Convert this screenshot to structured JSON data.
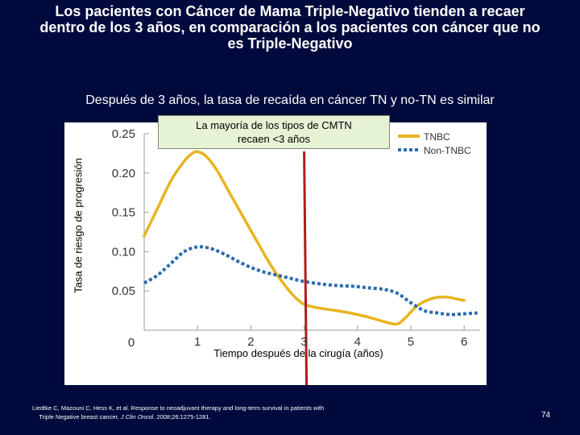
{
  "slide": {
    "title_line1": "Los pacientes con Cáncer de Mama Triple-Negativo tienden a recaer",
    "title_line2": "dentro de los 3 años, en comparación a los pacientes con cáncer que no",
    "title_line3": "es Triple-Negativo",
    "subtitle": "Después de 3 años, la tasa de recaída en cáncer TN y no-TN es similar",
    "annotation_line1": "La mayoría de los tipos de CMTN",
    "annotation_line2": "recaen <3 años",
    "citation_line1": "Liedtke C, Mazouni C, Hess K, et al. Response to neoadjuvant therapy and long-term survival in patients with",
    "citation_line2_pre": "Triple Negative breast cancer. ",
    "citation_journal": "J Clin Oncol",
    "citation_line2_post": ". 2008;26:1275-1281.",
    "page_number": "74"
  },
  "colors": {
    "background": "#000a3c",
    "tnbc": "#e8b41f",
    "non_tnbc": "#2e6cae",
    "marker": "#b01c1c"
  },
  "chart_data": {
    "type": "line",
    "title": "",
    "xlabel": "Tiempo después de la cirugía (años)",
    "ylabel": "Tasa de riesgo de progresión",
    "xlim": [
      0,
      6.3
    ],
    "ylim": [
      0,
      0.25
    ],
    "x_ticks": [
      "1",
      "2",
      "3",
      "4",
      "5",
      "6"
    ],
    "x_tick_values": [
      1,
      2,
      3,
      4,
      5,
      6
    ],
    "x_origin_label": "0",
    "y_ticks": [
      "0.05",
      "0.10",
      "0.15",
      "0.20",
      "0.25"
    ],
    "y_tick_values": [
      0.05,
      0.1,
      0.15,
      0.2,
      0.25
    ],
    "vertical_marker_x": 3,
    "legend_position": "top-right",
    "series": [
      {
        "name": "TNBC",
        "style": "solid",
        "x": [
          0,
          0.25,
          0.5,
          0.75,
          0.9,
          1.0,
          1.15,
          1.35,
          1.6,
          1.85,
          2.1,
          2.4,
          2.7,
          2.95,
          3.15,
          3.4,
          3.7,
          4.0,
          4.3,
          4.55,
          4.75,
          4.9,
          5.1,
          5.3,
          5.5,
          5.7,
          5.85,
          6.0
        ],
        "values": [
          0.12,
          0.155,
          0.19,
          0.215,
          0.225,
          0.227,
          0.222,
          0.205,
          0.175,
          0.145,
          0.115,
          0.08,
          0.052,
          0.035,
          0.03,
          0.027,
          0.024,
          0.02,
          0.015,
          0.01,
          0.008,
          0.016,
          0.03,
          0.038,
          0.042,
          0.042,
          0.04,
          0.038
        ]
      },
      {
        "name": "Non-TNBC",
        "style": "dotted",
        "x": [
          0,
          0.25,
          0.5,
          0.75,
          1.0,
          1.25,
          1.5,
          1.75,
          2.0,
          2.25,
          2.5,
          2.75,
          3.0,
          3.3,
          3.6,
          3.9,
          4.2,
          4.5,
          4.75,
          5.0,
          5.25,
          5.5,
          5.75,
          6.0,
          6.25
        ],
        "values": [
          0.06,
          0.07,
          0.085,
          0.1,
          0.106,
          0.104,
          0.097,
          0.088,
          0.08,
          0.074,
          0.07,
          0.066,
          0.062,
          0.059,
          0.057,
          0.056,
          0.054,
          0.052,
          0.047,
          0.035,
          0.025,
          0.022,
          0.02,
          0.021,
          0.022
        ]
      }
    ]
  }
}
